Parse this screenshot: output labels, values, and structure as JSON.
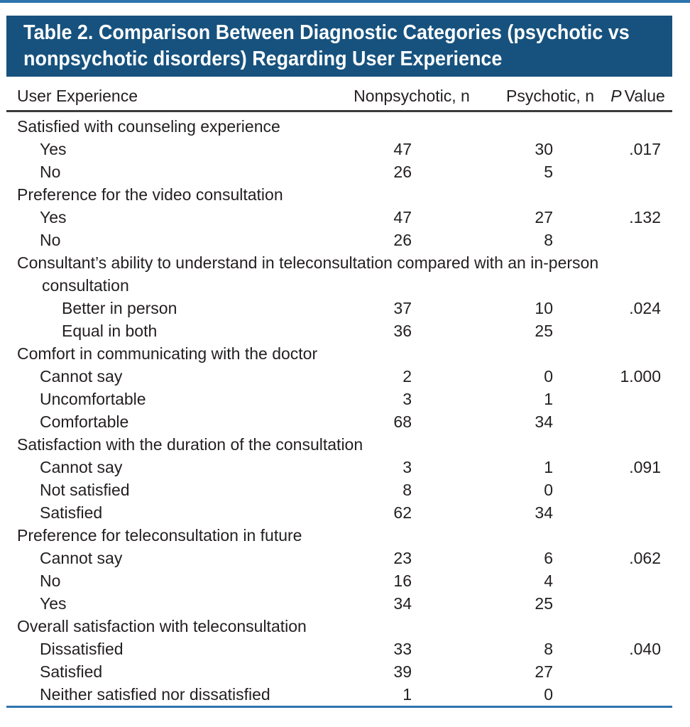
{
  "title": {
    "line1": "Table 2. Comparison Between Diagnostic Categories (psychotic vs",
    "line2": "nonpsychotic disorders) Regarding User Experience"
  },
  "table": {
    "headers": {
      "user_experience": "User Experience",
      "nonpsychotic": "Nonpsychotic, n",
      "psychotic": "Psychotic, n",
      "p_italic": "P",
      "p_rest": "Value"
    },
    "rows": [
      {
        "type": "category",
        "label": "Satisfied with counseling experience"
      },
      {
        "type": "item",
        "label": "Yes",
        "nonpsychotic": "47",
        "psychotic": "30",
        "p": ".017"
      },
      {
        "type": "item",
        "label": "No",
        "nonpsychotic": "26",
        "psychotic": "5",
        "p": ""
      },
      {
        "type": "category",
        "label": "Preference for the video consultation"
      },
      {
        "type": "item",
        "label": "Yes",
        "nonpsychotic": "47",
        "psychotic": "27",
        "p": ".132"
      },
      {
        "type": "item",
        "label": "No",
        "nonpsychotic": "26",
        "psychotic": "8",
        "p": ""
      },
      {
        "type": "category",
        "label": "Consultant’s ability to understand in teleconsultation compared with an in-person",
        "label2": "consultation"
      },
      {
        "type": "item2",
        "label": "Better in person",
        "nonpsychotic": "37",
        "psychotic": "10",
        "p": ".024"
      },
      {
        "type": "item2",
        "label": "Equal in both",
        "nonpsychotic": "36",
        "psychotic": "25",
        "p": ""
      },
      {
        "type": "category",
        "label": "Comfort in communicating with the doctor"
      },
      {
        "type": "item",
        "label": "Cannot say",
        "nonpsychotic": "2",
        "psychotic": "0",
        "p": "1.000"
      },
      {
        "type": "item",
        "label": "Uncomfortable",
        "nonpsychotic": "3",
        "psychotic": "1",
        "p": ""
      },
      {
        "type": "item",
        "label": "Comfortable",
        "nonpsychotic": "68",
        "psychotic": "34",
        "p": ""
      },
      {
        "type": "category",
        "label": "Satisfaction with the duration of the consultation"
      },
      {
        "type": "item",
        "label": "Cannot say",
        "nonpsychotic": "3",
        "psychotic": "1",
        "p": ".091"
      },
      {
        "type": "item",
        "label": "Not satisfied",
        "nonpsychotic": "8",
        "psychotic": "0",
        "p": ""
      },
      {
        "type": "item",
        "label": "Satisfied",
        "nonpsychotic": "62",
        "psychotic": "34",
        "p": ""
      },
      {
        "type": "category",
        "label": "Preference for teleconsultation in future"
      },
      {
        "type": "item",
        "label": "Cannot say",
        "nonpsychotic": "23",
        "psychotic": "6",
        "p": ".062"
      },
      {
        "type": "item",
        "label": "No",
        "nonpsychotic": "16",
        "psychotic": "4",
        "p": ""
      },
      {
        "type": "item",
        "label": "Yes",
        "nonpsychotic": "34",
        "psychotic": "25",
        "p": ""
      },
      {
        "type": "category",
        "label": "Overall satisfaction with teleconsultation"
      },
      {
        "type": "item",
        "label": "Dissatisfied",
        "nonpsychotic": "33",
        "psychotic": "8",
        "p": ".040"
      },
      {
        "type": "item",
        "label": "Satisfied",
        "nonpsychotic": "39",
        "psychotic": "27",
        "p": ""
      },
      {
        "type": "item",
        "label": "Neither satisfied nor dissatisfied",
        "nonpsychotic": "1",
        "psychotic": "0",
        "p": ""
      }
    ]
  },
  "colors": {
    "title_bar": "#17527E",
    "accent_rule": "#2E74AE",
    "header_rule": "#3B3B3A",
    "text": "#231F20"
  }
}
